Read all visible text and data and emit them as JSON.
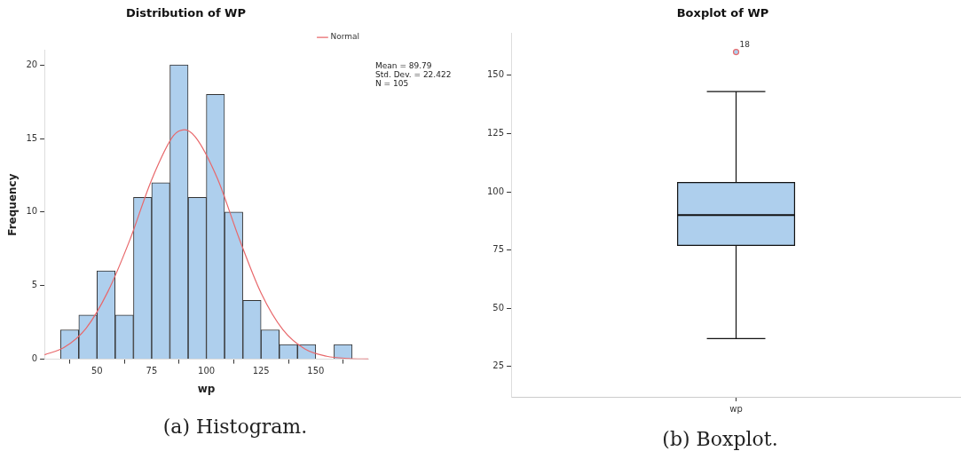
{
  "chart_data": [
    {
      "type": "histogram",
      "title": "Distribution of WP",
      "xlabel": "wp",
      "ylabel": "Frequency",
      "bins": [
        33.3,
        41.7,
        50,
        58.3,
        66.7,
        75,
        83.3,
        91.7,
        100,
        108.3,
        116.7,
        125,
        133.3,
        141.7,
        150,
        158.3,
        166.7
      ],
      "values": [
        2,
        3,
        6,
        3,
        11,
        12,
        20,
        11,
        18,
        10,
        4,
        2,
        1,
        1,
        0,
        1
      ],
      "color": "#aecfed",
      "series": [
        {
          "name": "Normal",
          "type": "line",
          "color": "#e8686b",
          "x": [
            26,
            35,
            45,
            55,
            65,
            75,
            85,
            90,
            95,
            105,
            115,
            125,
            135,
            145,
            155,
            165,
            174
          ],
          "values": [
            0.3,
            0.8,
            2.1,
            4.6,
            8.1,
            12.2,
            15.2,
            15.6,
            15.1,
            12.3,
            8.2,
            4.5,
            2.0,
            0.7,
            0.2,
            0.05,
            0.01
          ]
        }
      ],
      "xlim": [
        26,
        174
      ],
      "xticks": [
        50,
        75,
        100,
        125,
        150
      ],
      "ylim": [
        0,
        21
      ],
      "yticks": [
        0,
        5,
        10,
        15,
        20
      ],
      "grid": false,
      "legend": "top right",
      "annotations": [
        "Mean = 89.79",
        "Std. Dev. = 22.422",
        "N = 105",
        "(a) Histogram."
      ]
    },
    {
      "type": "box",
      "title": "Boxplot of WP",
      "categories": [
        "wp"
      ],
      "boxes": [
        {
          "low": 37,
          "q1": 77,
          "median": 90,
          "q3": 104,
          "high": 143,
          "outliers": [
            160
          ]
        }
      ],
      "color": "#aecfed",
      "ylim": [
        12,
        168
      ],
      "yticks": [
        25,
        50,
        75,
        100,
        125,
        150
      ],
      "grid": false,
      "annotations": [
        "18",
        "(b) Boxplot."
      ]
    }
  ]
}
